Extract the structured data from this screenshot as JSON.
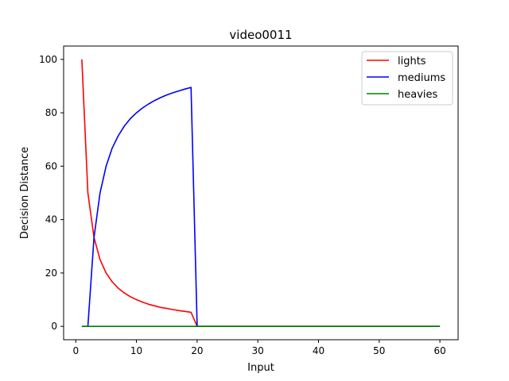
{
  "chart_data": {
    "type": "line",
    "title": "video0011",
    "xlabel": "Input",
    "ylabel": "Decision Distance",
    "xlim": [
      -2,
      63
    ],
    "ylim": [
      -5,
      105
    ],
    "xticks": [
      0,
      10,
      20,
      30,
      40,
      50,
      60
    ],
    "yticks": [
      0,
      20,
      40,
      60,
      80,
      100
    ],
    "grid": false,
    "legend_position": "top-right",
    "series": [
      {
        "name": "lights",
        "color": "#ff0000",
        "x": [
          1,
          2,
          3,
          4,
          5,
          6,
          7,
          8,
          9,
          10,
          11,
          12,
          13,
          14,
          15,
          16,
          17,
          18,
          19,
          20,
          60
        ],
        "y": [
          100,
          50,
          33.3,
          25,
          20,
          16.7,
          14.3,
          12.5,
          11.1,
          10,
          9.1,
          8.3,
          7.7,
          7.1,
          6.7,
          6.3,
          5.9,
          5.6,
          5.3,
          0,
          0
        ]
      },
      {
        "name": "mediums",
        "color": "#0000ff",
        "x": [
          1,
          2,
          3,
          4,
          5,
          6,
          7,
          8,
          9,
          10,
          11,
          12,
          13,
          14,
          15,
          16,
          17,
          18,
          19,
          20,
          60
        ],
        "y": [
          0,
          0,
          33.3,
          50,
          60,
          66.7,
          71.4,
          75,
          77.8,
          80,
          81.8,
          83.3,
          84.6,
          85.7,
          86.7,
          87.5,
          88.2,
          88.9,
          89.5,
          0,
          0
        ]
      },
      {
        "name": "heavies",
        "color": "#008000",
        "x": [
          1,
          60
        ],
        "y": [
          0,
          0
        ]
      }
    ]
  }
}
